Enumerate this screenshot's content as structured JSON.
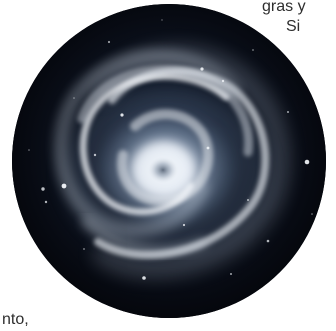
{
  "text_fragments": {
    "top_line": "gras y",
    "second_line": "Si",
    "bottom_line": "nto,"
  },
  "image": {
    "subject": "spiral-galaxy",
    "shape": "circle",
    "colors": {
      "space": "#05070d",
      "core": "#f4f7fb",
      "arm": "#dfe7f2",
      "glow": "#6f89a8"
    }
  }
}
